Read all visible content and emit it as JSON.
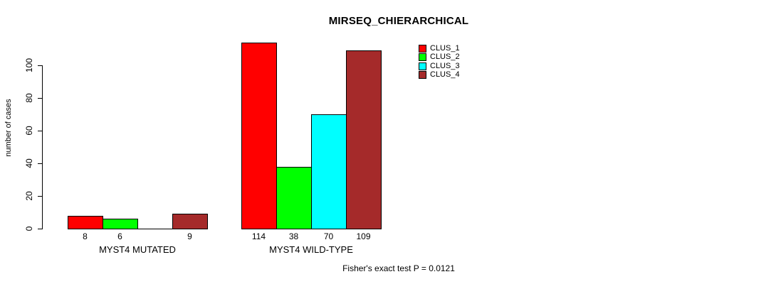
{
  "chart_data": {
    "type": "bar",
    "title": "MIRSEQ_CHIERARCHICAL",
    "ylabel": "number of cases",
    "annotation": "Fisher's exact test P = 0.0121",
    "yticks": [
      0,
      20,
      40,
      60,
      80,
      100
    ],
    "ylim": [
      0,
      114
    ],
    "grid": false,
    "legend_position": "top-right-inside",
    "legend": [
      {
        "label": "CLUS_1",
        "color": "#ff0000"
      },
      {
        "label": "CLUS_2",
        "color": "#00ff00"
      },
      {
        "label": "CLUS_3",
        "color": "#00ffff"
      },
      {
        "label": "CLUS_4",
        "color": "#a52a2a"
      }
    ],
    "groups": [
      {
        "label": "MYST4 MUTATED",
        "values": [
          8,
          6,
          0,
          9
        ],
        "value_labels": [
          "8",
          "6",
          "",
          "9"
        ]
      },
      {
        "label": "MYST4 WILD-TYPE",
        "values": [
          114,
          38,
          70,
          109
        ],
        "value_labels": [
          "114",
          "38",
          "70",
          "109"
        ]
      }
    ]
  }
}
